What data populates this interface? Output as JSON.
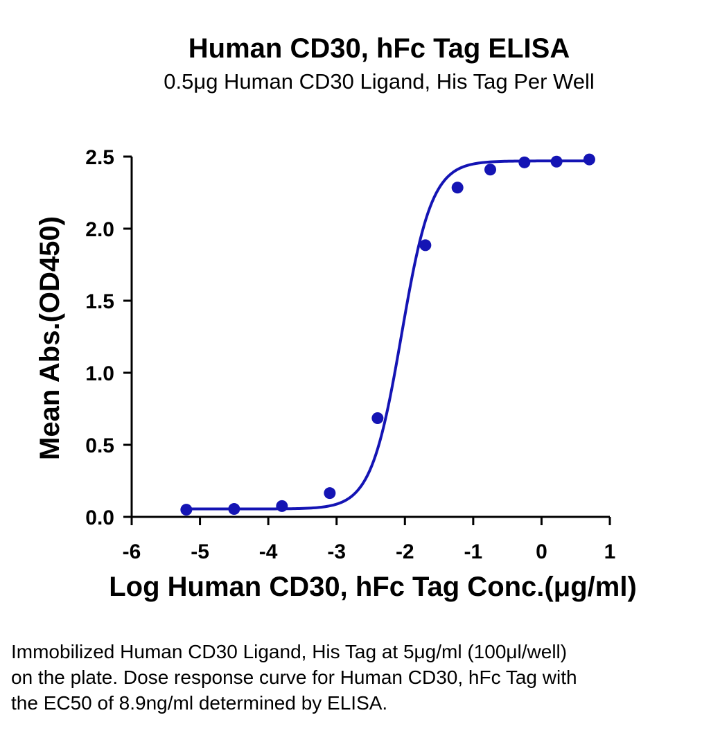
{
  "chart_data": {
    "type": "scatter",
    "title": "Human CD30, hFc Tag ELISA",
    "subtitle": "0.5μg Human CD30 Ligand, His Tag Per Well",
    "xlabel": "Log Human CD30, hFc Tag Conc.(μg/ml)",
    "ylabel": "Mean Abs.(OD450)",
    "xlim": [
      -6,
      1
    ],
    "ylim": [
      0,
      2.5
    ],
    "x_ticks": [
      -6,
      -5,
      -4,
      -3,
      -2,
      -1,
      0,
      1
    ],
    "y_ticks": [
      0.0,
      0.5,
      1.0,
      1.5,
      2.0,
      2.5
    ],
    "x_tick_labels": [
      "-6",
      "-5",
      "-4",
      "-3",
      "-2",
      "-1",
      "0",
      "1"
    ],
    "y_tick_labels": [
      "0.0",
      "0.5",
      "1.0",
      "1.5",
      "2.0",
      "2.5"
    ],
    "grid": false,
    "legend": "none",
    "color": "#1414b4",
    "series": [
      {
        "x": [
          -5.2,
          -4.5,
          -3.8,
          -3.1,
          -2.4,
          -1.7,
          -1.23,
          -0.75,
          -0.25,
          0.22,
          0.7
        ],
        "y": [
          0.05,
          0.055,
          0.075,
          0.165,
          0.685,
          1.885,
          2.285,
          2.41,
          2.46,
          2.465,
          2.48
        ],
        "fit": "4PL",
        "fit_params": {
          "bottom": 0.055,
          "top": 2.47,
          "log_ec50": -2.05,
          "hill": 1.95
        }
      }
    ]
  },
  "caption": "Immobilized Human CD30 Ligand, His Tag at 5μg/ml (100μl/well) on the plate. Dose response curve for Human CD30, hFc Tag with the EC50 of 8.9ng/ml determined by ELISA."
}
